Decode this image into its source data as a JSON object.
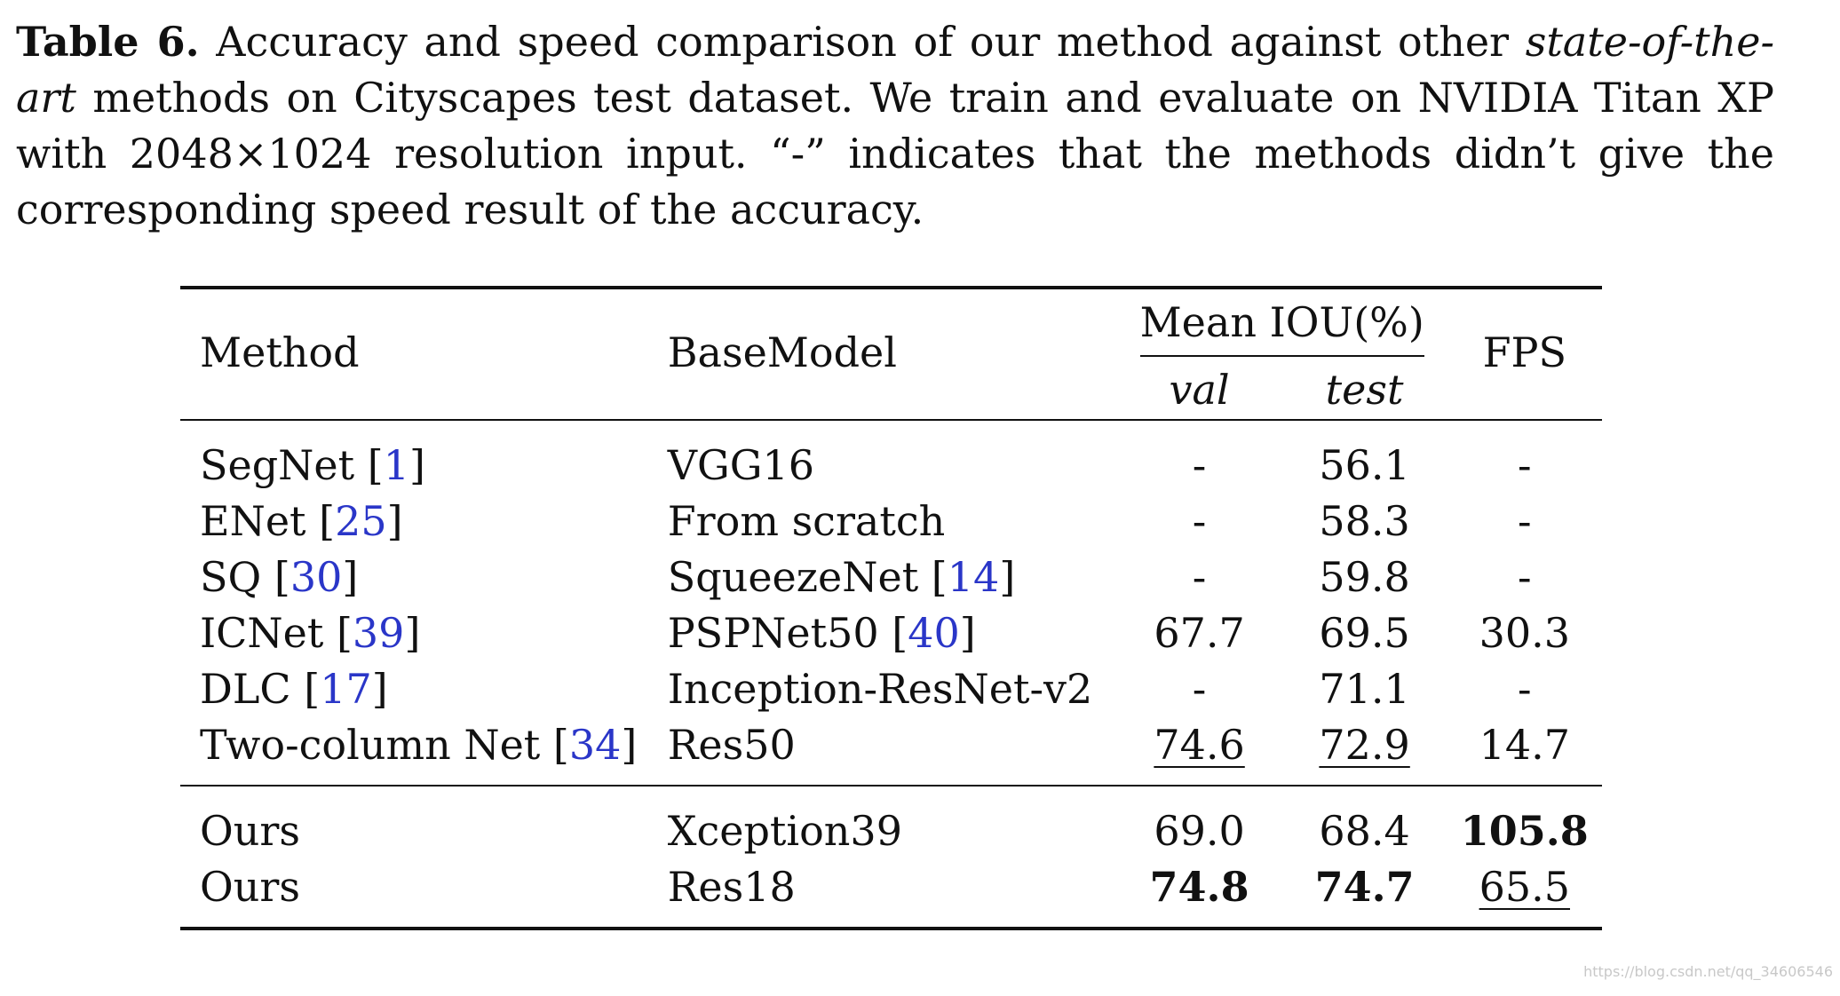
{
  "caption": {
    "label": "Table 6.",
    "text_before": " Accuracy and speed comparison of our method against other ",
    "italic": "state-of-the-art",
    "text_after": " methods on Cityscapes test dataset. We train and evaluate on NVIDIA Titan XP with 2048×1024 resolution input. “-” indicates that the methods didn’t give the corresponding speed result of the accuracy."
  },
  "table": {
    "headers": {
      "method": "Method",
      "basemodel": "BaseModel",
      "mean_iou": "Mean IOU(%)",
      "val": "val",
      "test": "test",
      "fps": "FPS"
    },
    "rows": [
      {
        "method": "SegNet",
        "cite": "1",
        "base": "VGG16",
        "base_cite": "",
        "val": "-",
        "test": "56.1",
        "fps": "-"
      },
      {
        "method": "ENet",
        "cite": "25",
        "base": "From scratch",
        "base_cite": "",
        "val": "-",
        "test": "58.3",
        "fps": "-"
      },
      {
        "method": "SQ",
        "cite": "30",
        "base": "SqueezeNet",
        "base_cite": "14",
        "val": "-",
        "test": "59.8",
        "fps": "-"
      },
      {
        "method": "ICNet",
        "cite": "39",
        "base": "PSPNet50",
        "base_cite": "40",
        "val": "67.7",
        "test": "69.5",
        "fps": "30.3"
      },
      {
        "method": "DLC",
        "cite": "17",
        "base": "Inception-ResNet-v2",
        "base_cite": "",
        "val": "-",
        "test": "71.1",
        "fps": "-"
      },
      {
        "method": "Two-column Net",
        "cite": "34",
        "base": "Res50",
        "base_cite": "",
        "val": "74.6",
        "test": "72.9",
        "fps": "14.7"
      }
    ],
    "ours": [
      {
        "method": "Ours",
        "base": "Xception39",
        "val": "69.0",
        "test": "68.4",
        "fps": "105.8"
      },
      {
        "method": "Ours",
        "base": "Res18",
        "val": "74.8",
        "test": "74.7",
        "fps": "65.5"
      }
    ]
  },
  "watermark": "https://blog.csdn.net/qq_34606546",
  "colors": {
    "citation": "#2a36c8",
    "text": "#111111"
  }
}
